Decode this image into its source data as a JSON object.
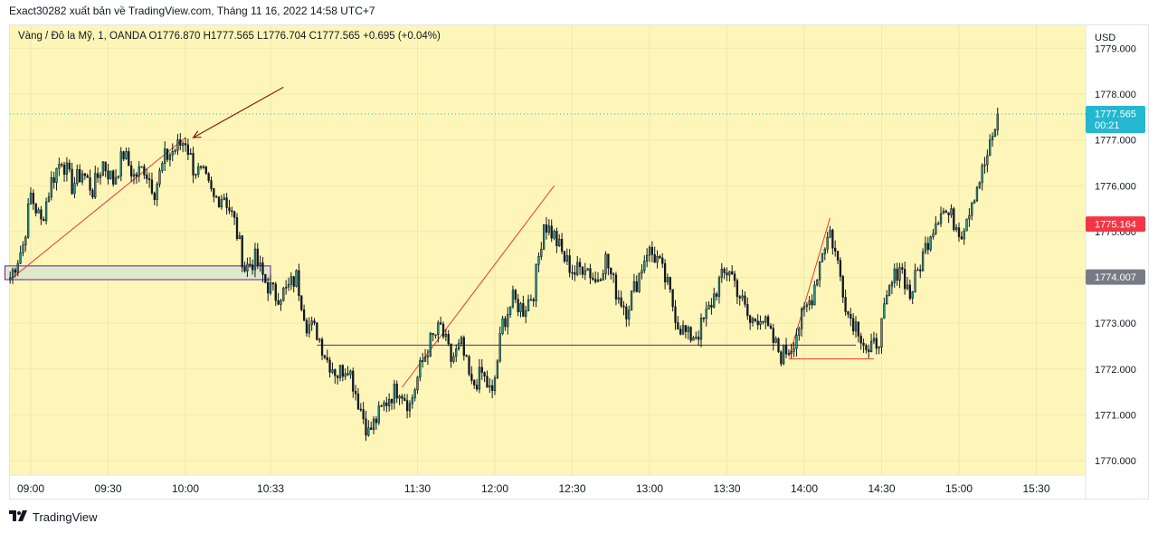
{
  "header": {
    "publish_line": "Exact30282 xuất bản về TradingView.com, Tháng 11 16, 2022 14:58 UTC+7"
  },
  "legend": {
    "symbol": "Vàng / Đô la Mỹ, 1, OANDA",
    "open": "O1776.870",
    "high": "H1777.565",
    "low": "L1776.704",
    "close": "C1777.565",
    "change": "+0.695 (+0.04%)"
  },
  "footer": {
    "brand": "TradingView",
    "logo_icon": "tradingview-logo-icon"
  },
  "colors": {
    "background": "#fdf6b8",
    "up": "#131722",
    "down": "#131722",
    "last_price": "#22b8cf",
    "red_label": "#f23645",
    "gray_label": "#787b86",
    "purple_line": "#6a1b9a",
    "red_line": "#e53935",
    "arrow": "#8b1a1a",
    "zone_fill": "#dfe8c8"
  },
  "chart_data": {
    "type": "candlestick",
    "instrument": "Vàng / Đô la Mỹ",
    "currency": "USD",
    "interval": "1",
    "ylim": [
      1769.7,
      1779.1
    ],
    "yticks": [
      "1770.000",
      "1771.000",
      "1772.000",
      "1773.000",
      "1774.000",
      "1775.000",
      "1776.000",
      "1777.000",
      "1778.000",
      "1779.000"
    ],
    "xticks": [
      {
        "label": "09:00",
        "time": 0
      },
      {
        "label": "09:30",
        "time": 30
      },
      {
        "label": "10:00",
        "time": 60
      },
      {
        "label": "10:33",
        "time": 93
      },
      {
        "label": "11:30",
        "time": 150
      },
      {
        "label": "12:00",
        "time": 180
      },
      {
        "label": "12:30",
        "time": 210
      },
      {
        "label": "13:00",
        "time": 240
      },
      {
        "label": "13:30",
        "time": 270
      },
      {
        "label": "14:00",
        "time": 300
      },
      {
        "label": "14:30",
        "time": 330
      },
      {
        "label": "15:00",
        "time": 360
      },
      {
        "label": "15:30",
        "time": 390
      }
    ],
    "price_labels": [
      {
        "text": "1777.565",
        "sub": "00:21",
        "value": 1777.565,
        "color_key": "last_price"
      },
      {
        "text": "1775.164",
        "value": 1775.164,
        "color_key": "red_label"
      },
      {
        "text": "1774.007",
        "value": 1774.007,
        "color_key": "gray_label"
      }
    ],
    "last_price_line": 1777.565,
    "closes": [
      {
        "t": -8,
        "c": 1774.0
      },
      {
        "t": -3,
        "c": 1774.7
      },
      {
        "t": 0,
        "c": 1775.8
      },
      {
        "t": 4,
        "c": 1775.2
      },
      {
        "t": 8,
        "c": 1776.1
      },
      {
        "t": 12,
        "c": 1776.6
      },
      {
        "t": 16,
        "c": 1776.0
      },
      {
        "t": 20,
        "c": 1776.3
      },
      {
        "t": 24,
        "c": 1775.9
      },
      {
        "t": 28,
        "c": 1776.5
      },
      {
        "t": 32,
        "c": 1776.1
      },
      {
        "t": 36,
        "c": 1776.7
      },
      {
        "t": 40,
        "c": 1776.2
      },
      {
        "t": 44,
        "c": 1776.4
      },
      {
        "t": 48,
        "c": 1775.9
      },
      {
        "t": 52,
        "c": 1776.6
      },
      {
        "t": 56,
        "c": 1776.8
      },
      {
        "t": 60,
        "c": 1777.0
      },
      {
        "t": 63,
        "c": 1776.4
      },
      {
        "t": 67,
        "c": 1776.2
      },
      {
        "t": 71,
        "c": 1775.7
      },
      {
        "t": 75,
        "c": 1775.8
      },
      {
        "t": 79,
        "c": 1775.2
      },
      {
        "t": 83,
        "c": 1774.2
      },
      {
        "t": 87,
        "c": 1774.4
      },
      {
        "t": 91,
        "c": 1773.9
      },
      {
        "t": 95,
        "c": 1773.6
      },
      {
        "t": 99,
        "c": 1773.7
      },
      {
        "t": 103,
        "c": 1774.0
      },
      {
        "t": 107,
        "c": 1773.0
      },
      {
        "t": 111,
        "c": 1772.8
      },
      {
        "t": 115,
        "c": 1772.2
      },
      {
        "t": 119,
        "c": 1771.9
      },
      {
        "t": 123,
        "c": 1772.1
      },
      {
        "t": 127,
        "c": 1771.3
      },
      {
        "t": 131,
        "c": 1770.6
      },
      {
        "t": 135,
        "c": 1771.0
      },
      {
        "t": 139,
        "c": 1771.4
      },
      {
        "t": 143,
        "c": 1771.6
      },
      {
        "t": 147,
        "c": 1771.2
      },
      {
        "t": 151,
        "c": 1772.0
      },
      {
        "t": 155,
        "c": 1772.6
      },
      {
        "t": 159,
        "c": 1772.9
      },
      {
        "t": 163,
        "c": 1772.2
      },
      {
        "t": 167,
        "c": 1772.5
      },
      {
        "t": 171,
        "c": 1771.6
      },
      {
        "t": 175,
        "c": 1771.9
      },
      {
        "t": 179,
        "c": 1771.4
      },
      {
        "t": 183,
        "c": 1773.0
      },
      {
        "t": 187,
        "c": 1773.5
      },
      {
        "t": 191,
        "c": 1773.3
      },
      {
        "t": 195,
        "c": 1773.7
      },
      {
        "t": 199,
        "c": 1775.2
      },
      {
        "t": 203,
        "c": 1774.9
      },
      {
        "t": 207,
        "c": 1774.4
      },
      {
        "t": 211,
        "c": 1774.1
      },
      {
        "t": 215,
        "c": 1774.3
      },
      {
        "t": 219,
        "c": 1773.9
      },
      {
        "t": 223,
        "c": 1774.4
      },
      {
        "t": 227,
        "c": 1773.7
      },
      {
        "t": 231,
        "c": 1773.3
      },
      {
        "t": 235,
        "c": 1773.9
      },
      {
        "t": 239,
        "c": 1774.6
      },
      {
        "t": 243,
        "c": 1774.4
      },
      {
        "t": 247,
        "c": 1773.8
      },
      {
        "t": 251,
        "c": 1773.0
      },
      {
        "t": 255,
        "c": 1772.7
      },
      {
        "t": 259,
        "c": 1772.8
      },
      {
        "t": 263,
        "c": 1773.3
      },
      {
        "t": 267,
        "c": 1773.9
      },
      {
        "t": 271,
        "c": 1774.2
      },
      {
        "t": 275,
        "c": 1773.6
      },
      {
        "t": 279,
        "c": 1773.0
      },
      {
        "t": 283,
        "c": 1773.2
      },
      {
        "t": 287,
        "c": 1772.7
      },
      {
        "t": 291,
        "c": 1772.3
      },
      {
        "t": 295,
        "c": 1772.5
      },
      {
        "t": 299,
        "c": 1773.1
      },
      {
        "t": 303,
        "c": 1773.6
      },
      {
        "t": 307,
        "c": 1774.6
      },
      {
        "t": 310,
        "c": 1775.0
      },
      {
        "t": 313,
        "c": 1774.3
      },
      {
        "t": 317,
        "c": 1773.2
      },
      {
        "t": 321,
        "c": 1772.9
      },
      {
        "t": 325,
        "c": 1772.3
      },
      {
        "t": 329,
        "c": 1772.7
      },
      {
        "t": 333,
        "c": 1773.7
      },
      {
        "t": 337,
        "c": 1774.3
      },
      {
        "t": 341,
        "c": 1773.6
      },
      {
        "t": 345,
        "c": 1774.3
      },
      {
        "t": 349,
        "c": 1775.0
      },
      {
        "t": 353,
        "c": 1775.5
      },
      {
        "t": 357,
        "c": 1775.3
      },
      {
        "t": 361,
        "c": 1775.0
      },
      {
        "t": 365,
        "c": 1775.7
      },
      {
        "t": 369,
        "c": 1776.3
      },
      {
        "t": 373,
        "c": 1777.0
      },
      {
        "t": 375,
        "c": 1777.565
      }
    ],
    "drawings": [
      {
        "kind": "rect",
        "t1": -10,
        "t2": 93,
        "p1": 1773.95,
        "p2": 1774.25,
        "color_key": "zone_fill",
        "border_key": "purple_line"
      },
      {
        "kind": "hline",
        "t1": 111,
        "t2": 320,
        "p": 1772.52,
        "color_key": "purple_line"
      },
      {
        "kind": "hline",
        "t1": 294,
        "t2": 327,
        "p": 1772.22,
        "color_key": "red_line"
      },
      {
        "kind": "trend",
        "t1": -8,
        "p1": 1773.95,
        "t2": 60,
        "p2": 1777.05,
        "color_key": "red_line"
      },
      {
        "kind": "trend",
        "t1": 144,
        "p1": 1771.6,
        "t2": 203,
        "p2": 1776.0,
        "color_key": "red_line"
      },
      {
        "kind": "trend",
        "t1": 294,
        "p1": 1772.25,
        "t2": 310,
        "p2": 1775.3,
        "color_key": "red_line"
      },
      {
        "kind": "arrow",
        "t1": 98,
        "p1": 1778.15,
        "t2": 63,
        "p2": 1777.05,
        "color_key": "arrow"
      }
    ]
  }
}
